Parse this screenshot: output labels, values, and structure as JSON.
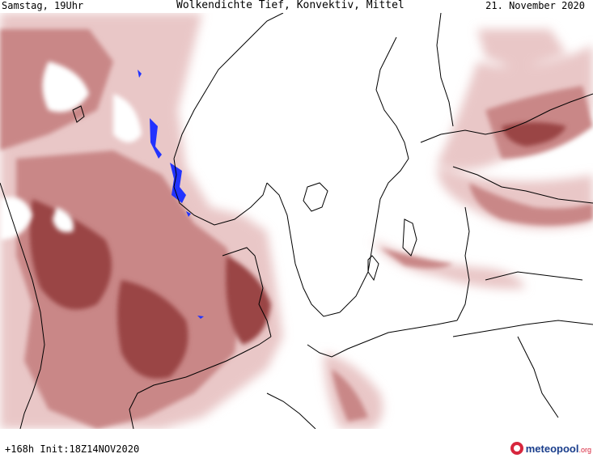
{
  "header": {
    "valid_time": "Samstag, 19Uhr",
    "title": "Wolkendichte  Tief, Konvektiv, Mittel",
    "date": "21. November 2020"
  },
  "footer": {
    "run_info": "+168h Init:18Z14NOV2020",
    "logo_name": "meteopool",
    "logo_tld": ".org"
  },
  "colors": {
    "cloud_light": "#e9c7c7",
    "cloud_mid": "#c98787",
    "cloud_dark": "#9a4545",
    "convective": "#2233ff",
    "coastline": "#000000"
  },
  "icons": {
    "logo": "meteopool-logo-icon"
  }
}
